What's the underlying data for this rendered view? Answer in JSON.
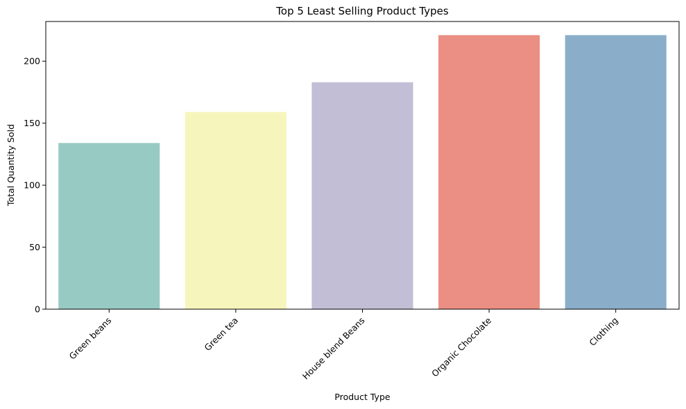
{
  "chart_data": {
    "type": "bar",
    "title": "Top 5 Least Selling Product Types",
    "xlabel": "Product Type",
    "ylabel": "Total Quantity Sold",
    "categories": [
      "Green beans",
      "Green tea",
      "House blend Beans",
      "Organic Chocolate",
      "Clothing"
    ],
    "values": [
      134,
      159,
      183,
      221,
      221
    ],
    "colors": [
      "#97cac2",
      "#f6f6bc",
      "#c2bed6",
      "#eb8e83",
      "#8aaec9"
    ],
    "ylim": [
      0,
      232
    ],
    "yticks": [
      0,
      50,
      100,
      150,
      200
    ],
    "grid": false,
    "legend": "none"
  }
}
